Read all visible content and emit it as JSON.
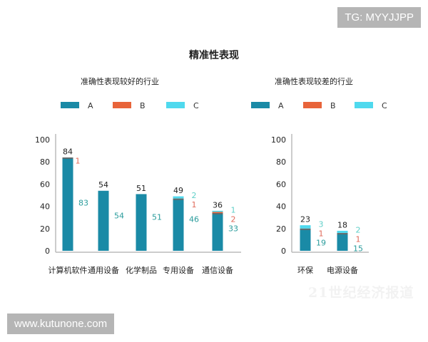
{
  "badge": "TG: MYYJJPP",
  "footer": "www.kutunone.com",
  "watermark": "21世纪经济报道",
  "colors": {
    "A": "#1a8aa6",
    "B": "#e8643a",
    "C": "#4fd9ee",
    "divider": "#5d6d70",
    "labelA": "#2a9c9c",
    "labelB": "#e06a5a",
    "labelC": "#5fcfc8"
  },
  "chart_data": {
    "title": "精准性表现",
    "charts": [
      {
        "type": "bar",
        "stacked": true,
        "title": "准确性表现较好的行业",
        "legend": [
          "A",
          "B",
          "C"
        ],
        "ylim": [
          0,
          100
        ],
        "yticks": [
          0,
          20,
          40,
          60,
          80,
          100
        ],
        "categories": [
          "计算机软件",
          "通用设备",
          "化学制品",
          "专用设备",
          "通信设备"
        ],
        "series": [
          {
            "name": "A",
            "values": [
              83,
              54,
              51,
              46,
              33
            ]
          },
          {
            "name": "B",
            "values": [
              1,
              0,
              0,
              1,
              2
            ]
          },
          {
            "name": "C",
            "values": [
              0,
              0,
              0,
              2,
              1
            ]
          }
        ],
        "totals": [
          84,
          54,
          51,
          49,
          36
        ]
      },
      {
        "type": "bar",
        "stacked": true,
        "title": "准确性表现较差的行业",
        "legend": [
          "A",
          "B",
          "C"
        ],
        "ylim": [
          0,
          100
        ],
        "yticks": [
          0,
          20,
          40,
          60,
          80,
          100
        ],
        "categories": [
          "环保",
          "电源设备"
        ],
        "series": [
          {
            "name": "A",
            "values": [
              19,
              15
            ]
          },
          {
            "name": "B",
            "values": [
              1,
              1
            ]
          },
          {
            "name": "C",
            "values": [
              3,
              2
            ]
          }
        ],
        "totals": [
          23,
          18
        ]
      }
    ]
  }
}
